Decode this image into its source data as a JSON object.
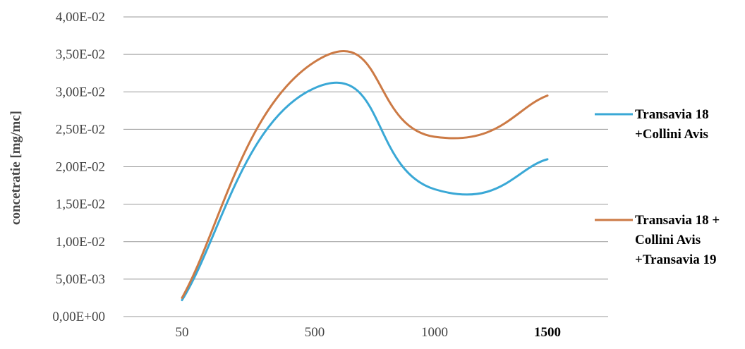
{
  "chart_data": {
    "type": "line",
    "categories": [
      "50",
      "500",
      "1000",
      "1500"
    ],
    "ylabel": "concetratie [mg/mc]",
    "ylim": [
      0,
      0.04
    ],
    "yticks": [
      {
        "value": 0.0,
        "label": "0,00E+00"
      },
      {
        "value": 0.005,
        "label": "5,00E-03"
      },
      {
        "value": 0.01,
        "label": "1,00E-02"
      },
      {
        "value": 0.015,
        "label": "1,50E-02"
      },
      {
        "value": 0.02,
        "label": "2,00E-02"
      },
      {
        "value": 0.025,
        "label": "2,50E-02"
      },
      {
        "value": 0.03,
        "label": "3,00E-02"
      },
      {
        "value": 0.035,
        "label": "3,50E-02"
      },
      {
        "value": 0.04,
        "label": "4,00E-02"
      }
    ],
    "grid": true,
    "legend_position": "right",
    "series": [
      {
        "name_lines": [
          "Transavia 18",
          "+Collini Avis"
        ],
        "color": "#3aa8d6",
        "values": [
          0.0022,
          0.0305,
          0.017,
          0.021
        ]
      },
      {
        "name_lines": [
          "Transavia 18 +",
          "Collini Avis",
          "+Transavia 19"
        ],
        "color": "#cc7a45",
        "values": [
          0.0025,
          0.034,
          0.024,
          0.0295
        ]
      }
    ]
  }
}
